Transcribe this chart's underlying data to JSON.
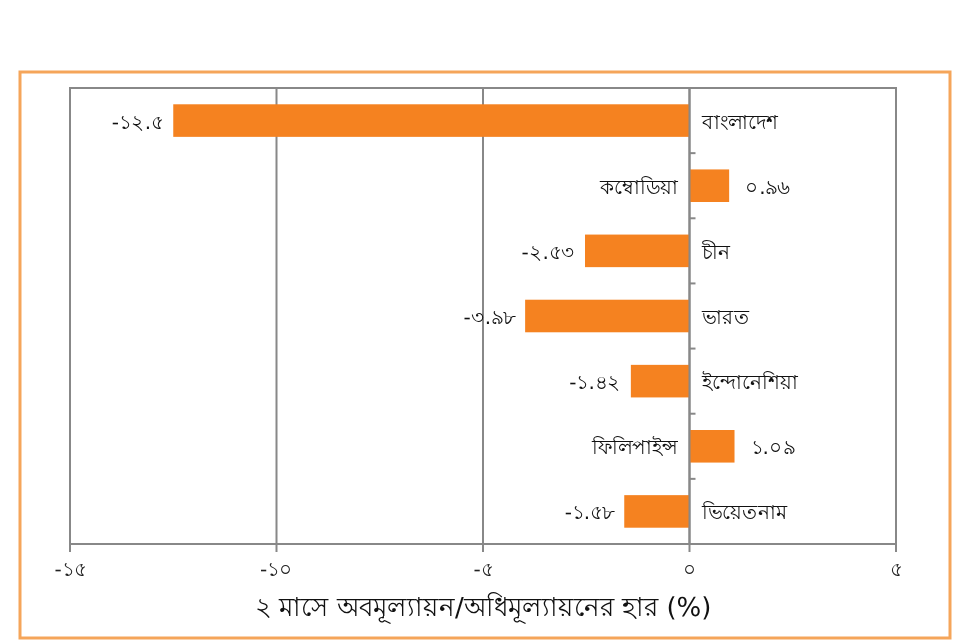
{
  "chart_data": {
    "type": "bar",
    "orientation": "horizontal",
    "xlabel": "২ মাসে অবমূল্যায়ন/অধিমূল্যায়নের হার (%)",
    "categories": [
      "বাংলাদেশ",
      "কম্বোডিয়া",
      "চীন",
      "ভারত",
      "ইন্দোনেশিয়া",
      "ফিলিপাইন্স",
      "ভিয়েতনাম"
    ],
    "values": [
      -12.5,
      0.96,
      -2.53,
      -3.98,
      -1.42,
      1.09,
      -1.58
    ],
    "value_labels": [
      "-১২.৫",
      "০.৯৬",
      "-২.৫৩",
      "-৩.৯৮",
      "-১.৪২",
      "১.০৯",
      "-১.৫৮"
    ],
    "color": "#f58220",
    "xlim": [
      -15,
      5
    ],
    "xticks": [
      {
        "value": -15,
        "label": "-১৫"
      },
      {
        "value": -10,
        "label": "-১০"
      },
      {
        "value": -5,
        "label": "-৫"
      },
      {
        "value": 0,
        "label": "০"
      },
      {
        "value": 5,
        "label": "৫"
      }
    ],
    "grid": "x"
  }
}
